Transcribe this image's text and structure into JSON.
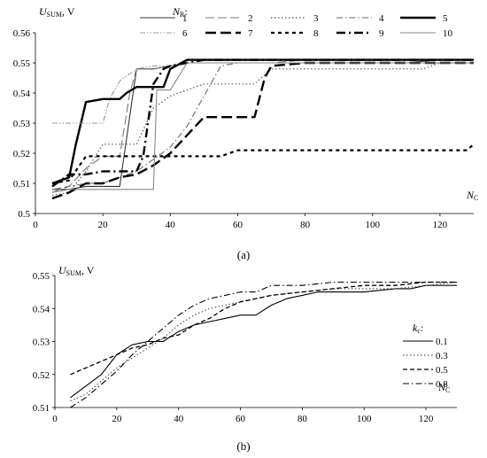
{
  "chart_data": [
    {
      "type": "line",
      "panel_label": "(a)",
      "ylabel": "U",
      "ylabel_sub": "SUM",
      "ylabel_unit": ", V",
      "xlabel": "N",
      "xlabel_sub": "C",
      "xlim": [
        0,
        130
      ],
      "ylim": [
        0.5,
        0.56
      ],
      "xticks": [
        "0",
        "20",
        "40",
        "60",
        "80",
        "100",
        "120"
      ],
      "yticks": [
        "0.5",
        "0.51",
        "0.52",
        "0.53",
        "0.54",
        "0.55",
        "0.56"
      ],
      "legend_title": "N",
      "legend_title_sub": "R",
      "legend_title_suffix": ":",
      "legend_position": "top",
      "series": [
        {
          "name": "1",
          "color": "#333333",
          "style": "solid-thin",
          "x": [
            5,
            10,
            15,
            20,
            25,
            30,
            35,
            40,
            45,
            50,
            60,
            70,
            80,
            90,
            100,
            110,
            120,
            130
          ],
          "y": [
            0.508,
            0.508,
            0.509,
            0.509,
            0.509,
            0.548,
            0.548,
            0.549,
            0.55,
            0.55,
            0.55,
            0.55,
            0.55,
            0.55,
            0.55,
            0.55,
            0.551,
            0.551
          ]
        },
        {
          "name": "2",
          "color": "#777777",
          "style": "longdash-thin",
          "x": [
            5,
            10,
            15,
            20,
            25,
            28,
            30,
            35,
            40,
            45,
            50,
            60,
            70,
            80,
            90,
            100,
            110,
            120,
            130
          ],
          "y": [
            0.508,
            0.509,
            0.515,
            0.519,
            0.519,
            0.54,
            0.548,
            0.548,
            0.549,
            0.55,
            0.55,
            0.55,
            0.55,
            0.551,
            0.551,
            0.551,
            0.551,
            0.551,
            0.551
          ]
        },
        {
          "name": "3",
          "color": "#555555",
          "style": "dotted-thin",
          "x": [
            5,
            10,
            15,
            20,
            25,
            30,
            35,
            40,
            45,
            50,
            55,
            60,
            65,
            70,
            80,
            90,
            100,
            110,
            115,
            120,
            130
          ],
          "y": [
            0.506,
            0.507,
            0.514,
            0.523,
            0.523,
            0.523,
            0.535,
            0.539,
            0.541,
            0.543,
            0.543,
            0.543,
            0.543,
            0.548,
            0.548,
            0.548,
            0.548,
            0.548,
            0.548,
            0.55,
            0.55
          ]
        },
        {
          "name": "4",
          "color": "#666666",
          "style": "dashdot-thin",
          "x": [
            5,
            10,
            15,
            20,
            25,
            30,
            35,
            40,
            45,
            50,
            55,
            60,
            70,
            80,
            90,
            100,
            110,
            120,
            130
          ],
          "y": [
            0.507,
            0.509,
            0.51,
            0.51,
            0.512,
            0.514,
            0.518,
            0.522,
            0.529,
            0.539,
            0.549,
            0.55,
            0.55,
            0.55,
            0.55,
            0.55,
            0.55,
            0.55,
            0.55
          ]
        },
        {
          "name": "5",
          "color": "#000000",
          "style": "solid-thick",
          "x": [
            5,
            10,
            12,
            15,
            20,
            25,
            27,
            30,
            35,
            38,
            40,
            45,
            50,
            60,
            70,
            80,
            90,
            100,
            110,
            120,
            130
          ],
          "y": [
            0.51,
            0.512,
            0.523,
            0.537,
            0.538,
            0.538,
            0.54,
            0.542,
            0.542,
            0.542,
            0.548,
            0.551,
            0.551,
            0.551,
            0.551,
            0.551,
            0.551,
            0.551,
            0.551,
            0.551,
            0.551
          ]
        },
        {
          "name": "6",
          "color": "#999999",
          "style": "dashdotdot-thin",
          "x": [
            5,
            10,
            15,
            20,
            22,
            25,
            30,
            35,
            40,
            45,
            50,
            60,
            70,
            80,
            90,
            100,
            110,
            120,
            130
          ],
          "y": [
            0.53,
            0.53,
            0.53,
            0.53,
            0.538,
            0.544,
            0.548,
            0.549,
            0.549,
            0.55,
            0.55,
            0.55,
            0.55,
            0.55,
            0.55,
            0.55,
            0.55,
            0.55,
            0.55
          ]
        },
        {
          "name": "7",
          "color": "#000000",
          "style": "longdash-thick",
          "x": [
            5,
            10,
            15,
            20,
            25,
            30,
            35,
            40,
            45,
            50,
            55,
            60,
            65,
            68,
            70,
            80,
            90,
            100,
            110,
            120,
            130
          ],
          "y": [
            0.505,
            0.507,
            0.51,
            0.51,
            0.512,
            0.513,
            0.516,
            0.52,
            0.526,
            0.532,
            0.532,
            0.532,
            0.532,
            0.545,
            0.549,
            0.55,
            0.55,
            0.55,
            0.55,
            0.55,
            0.55
          ]
        },
        {
          "name": "8",
          "color": "#000000",
          "style": "shortdash-thick",
          "x": [
            5,
            10,
            15,
            20,
            25,
            30,
            40,
            50,
            55,
            60,
            70,
            80,
            90,
            100,
            110,
            120,
            128,
            130
          ],
          "y": [
            0.51,
            0.511,
            0.519,
            0.519,
            0.519,
            0.519,
            0.519,
            0.519,
            0.519,
            0.521,
            0.521,
            0.521,
            0.521,
            0.521,
            0.521,
            0.521,
            0.521,
            0.523
          ]
        },
        {
          "name": "9",
          "color": "#000000",
          "style": "dashdot-thick",
          "x": [
            5,
            10,
            15,
            20,
            25,
            30,
            32,
            35,
            38,
            40,
            45,
            50,
            60,
            70,
            80,
            90,
            100,
            110,
            120,
            130
          ],
          "y": [
            0.509,
            0.513,
            0.513,
            0.514,
            0.514,
            0.514,
            0.519,
            0.543,
            0.548,
            0.549,
            0.55,
            0.551,
            0.551,
            0.551,
            0.551,
            0.551,
            0.551,
            0.551,
            0.551,
            0.551
          ]
        },
        {
          "name": "10",
          "color": "#888888",
          "style": "solid-thin",
          "x": [
            5,
            10,
            15,
            20,
            25,
            30,
            35,
            36,
            40,
            45,
            50,
            60,
            70,
            80,
            90,
            100,
            110,
            120,
            130
          ],
          "y": [
            0.507,
            0.508,
            0.508,
            0.508,
            0.508,
            0.508,
            0.508,
            0.541,
            0.541,
            0.55,
            0.55,
            0.55,
            0.55,
            0.55,
            0.55,
            0.55,
            0.55,
            0.55,
            0.55
          ]
        }
      ]
    },
    {
      "type": "line",
      "panel_label": "(b)",
      "ylabel": "U",
      "ylabel_sub": "SUM",
      "ylabel_unit": ", V",
      "xlabel": "N",
      "xlabel_sub": "C",
      "xlim": [
        0,
        130
      ],
      "ylim": [
        0.51,
        0.55
      ],
      "xticks": [
        "0",
        "20",
        "40",
        "60",
        "80",
        "100",
        "120"
      ],
      "yticks": [
        "0.51",
        "0.52",
        "0.53",
        "0.54",
        "0.55"
      ],
      "legend_title": "k",
      "legend_title_sub": "c",
      "legend_title_suffix": ":",
      "legend_position": "right",
      "series": [
        {
          "name": "0.1",
          "color": "#000000",
          "style": "solid-thin",
          "x": [
            5,
            15,
            20,
            25,
            30,
            35,
            40,
            45,
            50,
            55,
            60,
            65,
            70,
            75,
            80,
            85,
            90,
            100,
            110,
            115,
            120,
            130
          ],
          "y": [
            0.513,
            0.52,
            0.526,
            0.529,
            0.53,
            0.53,
            0.533,
            0.535,
            0.536,
            0.537,
            0.538,
            0.538,
            0.541,
            0.543,
            0.544,
            0.545,
            0.545,
            0.545,
            0.546,
            0.546,
            0.547,
            0.547
          ]
        },
        {
          "name": "0.3",
          "color": "#555555",
          "style": "dotted-thin",
          "x": [
            5,
            10,
            15,
            20,
            25,
            30,
            35,
            40,
            45,
            50,
            55,
            60,
            65,
            70,
            80,
            90,
            100,
            110,
            120,
            130
          ],
          "y": [
            0.512,
            0.514,
            0.518,
            0.522,
            0.525,
            0.528,
            0.531,
            0.535,
            0.538,
            0.54,
            0.541,
            0.542,
            0.543,
            0.544,
            0.545,
            0.546,
            0.546,
            0.546,
            0.547,
            0.548
          ]
        },
        {
          "name": "0.5",
          "color": "#000000",
          "style": "dashed-thin",
          "x": [
            5,
            10,
            15,
            20,
            25,
            30,
            35,
            40,
            45,
            50,
            55,
            60,
            65,
            70,
            80,
            90,
            100,
            110,
            120,
            130
          ],
          "y": [
            0.52,
            0.522,
            0.524,
            0.526,
            0.528,
            0.529,
            0.531,
            0.532,
            0.535,
            0.537,
            0.54,
            0.542,
            0.543,
            0.544,
            0.545,
            0.546,
            0.547,
            0.547,
            0.548,
            0.548
          ]
        },
        {
          "name": "0.8",
          "color": "#000000",
          "style": "dashdot-thin",
          "x": [
            5,
            10,
            15,
            20,
            25,
            30,
            35,
            40,
            45,
            50,
            55,
            60,
            65,
            70,
            80,
            90,
            100,
            110,
            120,
            130
          ],
          "y": [
            0.51,
            0.513,
            0.517,
            0.521,
            0.526,
            0.53,
            0.534,
            0.538,
            0.541,
            0.543,
            0.544,
            0.545,
            0.545,
            0.547,
            0.547,
            0.548,
            0.548,
            0.548,
            0.548,
            0.548
          ]
        }
      ]
    }
  ]
}
